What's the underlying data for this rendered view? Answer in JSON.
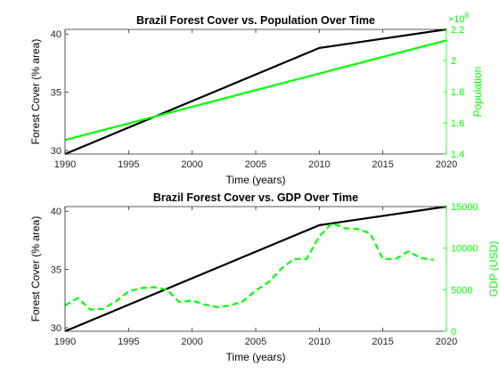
{
  "colors": {
    "forest": "#000000",
    "secondary": "#00ff00",
    "axis": "#262626"
  },
  "chart_data": [
    {
      "type": "line",
      "title": "Brazil Forest Cover vs. Population Over Time",
      "xlabel": "Time (years)",
      "ylabel_left": "Forest Cover (% area)",
      "ylabel_right": "Population",
      "right_exponent_label": "×10",
      "right_exponent_power": "8",
      "xlim": [
        1990,
        2020
      ],
      "ylim_left": [
        29.7,
        40.4
      ],
      "ylim_right": [
        1.4,
        2.2
      ],
      "xticks": [
        "1990",
        "1995",
        "2000",
        "2005",
        "2010",
        "2015",
        "2020"
      ],
      "yticks_left": [
        "30",
        "35",
        "40"
      ],
      "yticks_right": [
        "1.4",
        "1.6",
        "1.8",
        "2",
        "2.2"
      ],
      "series": [
        {
          "axis": "left",
          "style": "solid",
          "color": "#000000",
          "x": [
            1990,
            2010,
            2020
          ],
          "y": [
            29.7,
            38.8,
            40.4
          ]
        },
        {
          "axis": "right",
          "style": "solid",
          "color": "#00ff00",
          "x": [
            1990,
            2020
          ],
          "y": [
            1.49,
            2.13
          ]
        }
      ]
    },
    {
      "type": "line",
      "title": "Brazil Forest Cover vs. GDP Over Time",
      "xlabel": "Time (years)",
      "ylabel_left": "Forest Cover (% area)",
      "ylabel_right": "GDP (USD)",
      "xlim": [
        1990,
        2020
      ],
      "ylim_left": [
        29.7,
        40.4
      ],
      "ylim_right": [
        0,
        15000
      ],
      "xticks": [
        "1990",
        "1995",
        "2000",
        "2005",
        "2010",
        "2015",
        "2020"
      ],
      "yticks_left": [
        "30",
        "35",
        "40"
      ],
      "yticks_right": [
        "0",
        "5000",
        "10000",
        "15000"
      ],
      "series": [
        {
          "axis": "left",
          "style": "solid",
          "color": "#000000",
          "x": [
            1990,
            2010,
            2020
          ],
          "y": [
            29.7,
            38.8,
            40.4
          ]
        },
        {
          "axis": "right",
          "style": "dashed",
          "color": "#00ff00",
          "x": [
            1990,
            1991,
            1992,
            1993,
            1994,
            1995,
            1996,
            1997,
            1998,
            1999,
            2000,
            2001,
            2002,
            2003,
            2004,
            2005,
            2006,
            2007,
            2008,
            2009,
            2010,
            2011,
            2012,
            2013,
            2014,
            2015,
            2016,
            2017,
            2018,
            2019
          ],
          "y": [
            3100,
            4000,
            2600,
            2700,
            3600,
            4800,
            5200,
            5300,
            5000,
            3500,
            3700,
            3200,
            2900,
            3100,
            3600,
            4900,
            5900,
            7500,
            8700,
            8700,
            11400,
            13000,
            12400,
            12300,
            11800,
            8700,
            8700,
            9600,
            8800,
            8600
          ]
        }
      ]
    }
  ]
}
